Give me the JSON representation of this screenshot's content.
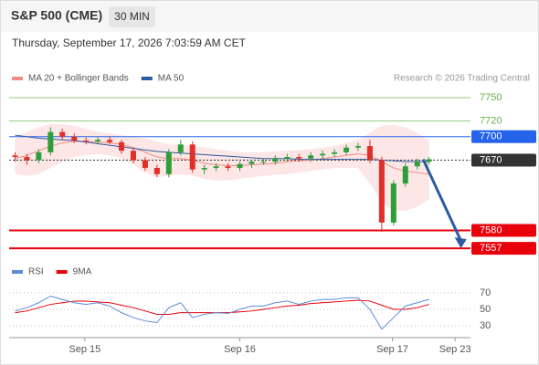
{
  "header": {
    "title": "S&P 500 (CME)",
    "interval": "30 MIN",
    "datetime": "Thursday, September 17, 2026 7:03:59 AM CET"
  },
  "chart_data": {
    "type": "candlestick",
    "legend": [
      {
        "name": "MA 20 + Bollinger Bands",
        "color": "#f28b82"
      },
      {
        "name": "MA 50",
        "color": "#2c5aa0"
      }
    ],
    "credit": "Research © 2026 Trading Central",
    "xlim": [
      0,
      39
    ],
    "xticks": [
      {
        "value": 6.4,
        "label": "Sep 15"
      },
      {
        "value": 19.5,
        "label": "Sep 16"
      },
      {
        "value": 32.4,
        "label": "Sep 17"
      },
      {
        "value": 37.7,
        "label": "Sep 23"
      }
    ],
    "ylim": [
      7542,
      7764
    ],
    "up_color": "#2e9e3a",
    "down_color": "#e0302a",
    "open": [
      7676,
      7674,
      7670,
      7680,
      7706,
      7700,
      7695,
      7694,
      7696,
      7693,
      7682,
      7670,
      7660,
      7652,
      7680,
      7690,
      7658,
      7660,
      7662,
      7660,
      7665,
      7668,
      7668,
      7672,
      7674,
      7672,
      7676,
      7678,
      7680,
      7686,
      7688,
      7670,
      7590,
      7640,
      7662,
      7668
    ],
    "high": [
      7680,
      7678,
      7684,
      7712,
      7710,
      7704,
      7699,
      7699,
      7700,
      7696,
      7686,
      7674,
      7664,
      7684,
      7696,
      7694,
      7664,
      7666,
      7666,
      7668,
      7670,
      7672,
      7676,
      7678,
      7678,
      7680,
      7682,
      7684,
      7690,
      7692,
      7696,
      7674,
      7644,
      7666,
      7672,
      7674
    ],
    "low": [
      7668,
      7664,
      7666,
      7676,
      7696,
      7692,
      7690,
      7690,
      7690,
      7678,
      7666,
      7656,
      7648,
      7648,
      7676,
      7654,
      7652,
      7656,
      7656,
      7656,
      7660,
      7664,
      7664,
      7668,
      7668,
      7668,
      7672,
      7674,
      7676,
      7682,
      7666,
      7578,
      7586,
      7636,
      7658,
      7664
    ],
    "close": [
      7674,
      7670,
      7680,
      7706,
      7700,
      7695,
      7694,
      7696,
      7693,
      7682,
      7670,
      7660,
      7652,
      7680,
      7690,
      7658,
      7660,
      7662,
      7660,
      7665,
      7668,
      7668,
      7672,
      7674,
      7672,
      7676,
      7678,
      7680,
      7686,
      7688,
      7670,
      7590,
      7640,
      7662,
      7668,
      7671
    ],
    "ma20": [
      7672,
      7676,
      7682,
      7688,
      7692,
      7694,
      7694,
      7693,
      7692,
      7690,
      7686,
      7680,
      7674,
      7672,
      7672,
      7670,
      7666,
      7664,
      7663,
      7663,
      7664,
      7665,
      7666,
      7668,
      7669,
      7670,
      7672,
      7674,
      7676,
      7678,
      7676,
      7668,
      7660,
      7656,
      7654,
      7652
    ],
    "ma50": [
      7702,
      7700,
      7698,
      7697,
      7696,
      7695,
      7693,
      7691,
      7689,
      7687,
      7685,
      7683,
      7681,
      7680,
      7679,
      7678,
      7677,
      7676,
      7675,
      7674,
      7673,
      7672,
      7672,
      7672,
      7671,
      7671,
      7671,
      7671,
      7671,
      7671,
      7671,
      7670,
      7669,
      7668,
      7668,
      7668
    ],
    "bb_upper": [
      7698,
      7706,
      7712,
      7716,
      7716,
      7714,
      7710,
      7706,
      7704,
      7702,
      7700,
      7698,
      7694,
      7690,
      7690,
      7688,
      7686,
      7684,
      7682,
      7680,
      7680,
      7680,
      7681,
      7682,
      7683,
      7684,
      7686,
      7688,
      7692,
      7696,
      7705,
      7714,
      7715,
      7712,
      7705,
      7695
    ],
    "bb_lower": [
      7652,
      7650,
      7652,
      7660,
      7668,
      7674,
      7676,
      7678,
      7676,
      7672,
      7664,
      7654,
      7648,
      7650,
      7652,
      7650,
      7646,
      7644,
      7644,
      7646,
      7648,
      7650,
      7651,
      7652,
      7654,
      7656,
      7658,
      7660,
      7660,
      7660,
      7640,
      7616,
      7605,
      7605,
      7610,
      7620
    ],
    "levels": [
      {
        "value": 7750,
        "color": "#6ab04c",
        "boxed": false
      },
      {
        "value": 7720,
        "color": "#6ab04c",
        "boxed": false
      },
      {
        "value": 7700,
        "color": "#2563eb",
        "boxed": true
      },
      {
        "value": 7670,
        "color": "#333333",
        "boxed": true
      },
      {
        "value": 7580,
        "color": "#e8000b",
        "boxed": true
      },
      {
        "value": 7557,
        "color": "#e8000b",
        "boxed": true
      }
    ],
    "target_arrow": {
      "x": [
        35,
        38.2
      ],
      "y": [
        7671,
        7557
      ],
      "color": "#2c5aa0"
    },
    "rsi": {
      "legend": [
        {
          "name": "RSI",
          "color": "#5b8bd8"
        },
        {
          "name": "9MA",
          "color": "#e8000b"
        }
      ],
      "ylim": [
        18,
        82
      ],
      "yticks": [
        70,
        50,
        30
      ],
      "values": [
        48,
        52,
        58,
        66,
        62,
        58,
        56,
        58,
        54,
        46,
        40,
        36,
        34,
        52,
        58,
        40,
        44,
        46,
        45,
        50,
        54,
        54,
        58,
        60,
        56,
        60,
        62,
        62,
        64,
        64,
        50,
        26,
        40,
        54,
        58,
        62
      ],
      "ma": [
        46,
        48,
        52,
        56,
        58,
        60,
        60,
        59,
        58,
        55,
        52,
        48,
        44,
        44,
        46,
        46,
        46,
        46,
        46,
        47,
        48,
        50,
        52,
        54,
        55,
        57,
        58,
        59,
        60,
        61,
        60,
        55,
        50,
        50,
        52,
        56
      ]
    }
  }
}
